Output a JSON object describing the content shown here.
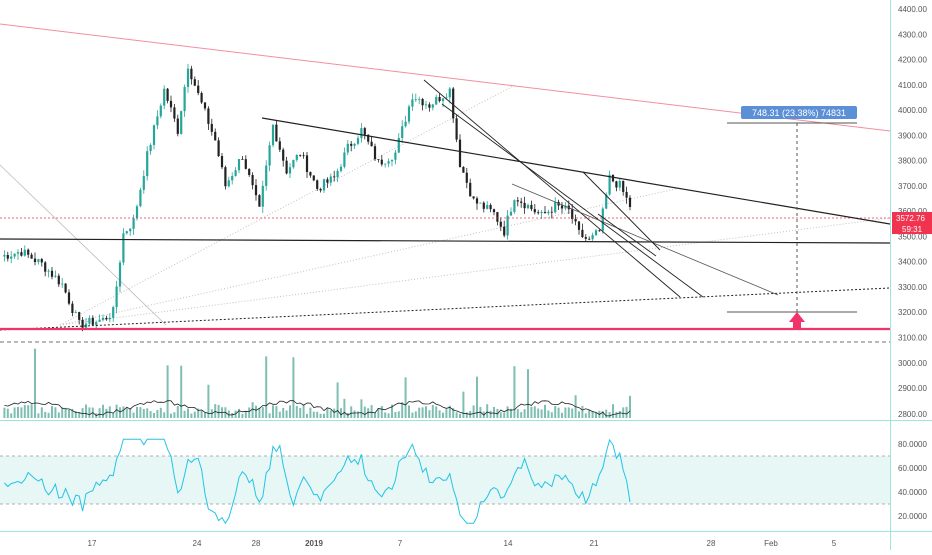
{
  "chart_data": {
    "type": "candlestick",
    "instrument_hint": "BTC price chart (daily-ish, intraday bars)",
    "price_axis": {
      "ticks": [
        "4400.00",
        "4300.00",
        "4200.00",
        "4100.00",
        "4000.00",
        "3900.00",
        "3800.00",
        "3700.00",
        "3600.00",
        "3500.00",
        "3400.00",
        "3300.00",
        "3200.00",
        "3100.00"
      ],
      "range": [
        3040,
        4430
      ]
    },
    "volume_axis": {
      "ticks": [
        "3000.00",
        "2900.00",
        "2800.00"
      ]
    },
    "rsi_axis": {
      "ticks": [
        "80.0000",
        "60.0000",
        "40.0000",
        "20.0000"
      ],
      "range": [
        10,
        90
      ],
      "band": [
        30,
        70
      ],
      "line_color": "#22c4e6"
    },
    "time_axis": {
      "labels": [
        "17",
        "24",
        "28",
        "2019",
        "7",
        "14",
        "21",
        "28",
        "Feb",
        "5"
      ]
    },
    "price_labels": {
      "last_price": "3572.76",
      "countdown": "59:31",
      "last_color": "#f2334f"
    },
    "measure_tool": {
      "label": "748.31 (23.38%) 74831",
      "from": 3200,
      "to": 3950,
      "color": "#5b8fd6"
    },
    "ohlc_anchors": [
      [
        0,
        3420
      ],
      [
        6,
        3440
      ],
      [
        12,
        3390
      ],
      [
        18,
        3310
      ],
      [
        23,
        3150
      ],
      [
        30,
        3170
      ],
      [
        33,
        3200
      ],
      [
        36,
        3510
      ],
      [
        39,
        3560
      ],
      [
        43,
        3820
      ],
      [
        48,
        4080
      ],
      [
        52,
        3920
      ],
      [
        55,
        4180
      ],
      [
        58,
        4060
      ],
      [
        63,
        3880
      ],
      [
        66,
        3700
      ],
      [
        71,
        3820
      ],
      [
        76,
        3600
      ],
      [
        80,
        3940
      ],
      [
        84,
        3760
      ],
      [
        88,
        3830
      ],
      [
        93,
        3690
      ],
      [
        98,
        3730
      ],
      [
        102,
        3850
      ],
      [
        106,
        3920
      ],
      [
        111,
        3790
      ],
      [
        116,
        3830
      ],
      [
        121,
        4060
      ],
      [
        126,
        4020
      ],
      [
        132,
        4080
      ],
      [
        135,
        3790
      ],
      [
        139,
        3640
      ],
      [
        145,
        3590
      ],
      [
        148,
        3520
      ],
      [
        151,
        3660
      ],
      [
        155,
        3620
      ],
      [
        159,
        3580
      ],
      [
        163,
        3620
      ],
      [
        167,
        3600
      ],
      [
        170,
        3510
      ],
      [
        173,
        3480
      ],
      [
        176,
        3520
      ],
      [
        179,
        3730
      ],
      [
        182,
        3700
      ],
      [
        185,
        3620
      ]
    ],
    "colors": {
      "up": "#26a69a",
      "down": "#222222",
      "resistance_red": "#f28ea0",
      "support_pink": "#f0336b",
      "trend_black": "#222222",
      "volume": "#7fbeb3",
      "rsi_band": "#e6f7f5"
    }
  }
}
